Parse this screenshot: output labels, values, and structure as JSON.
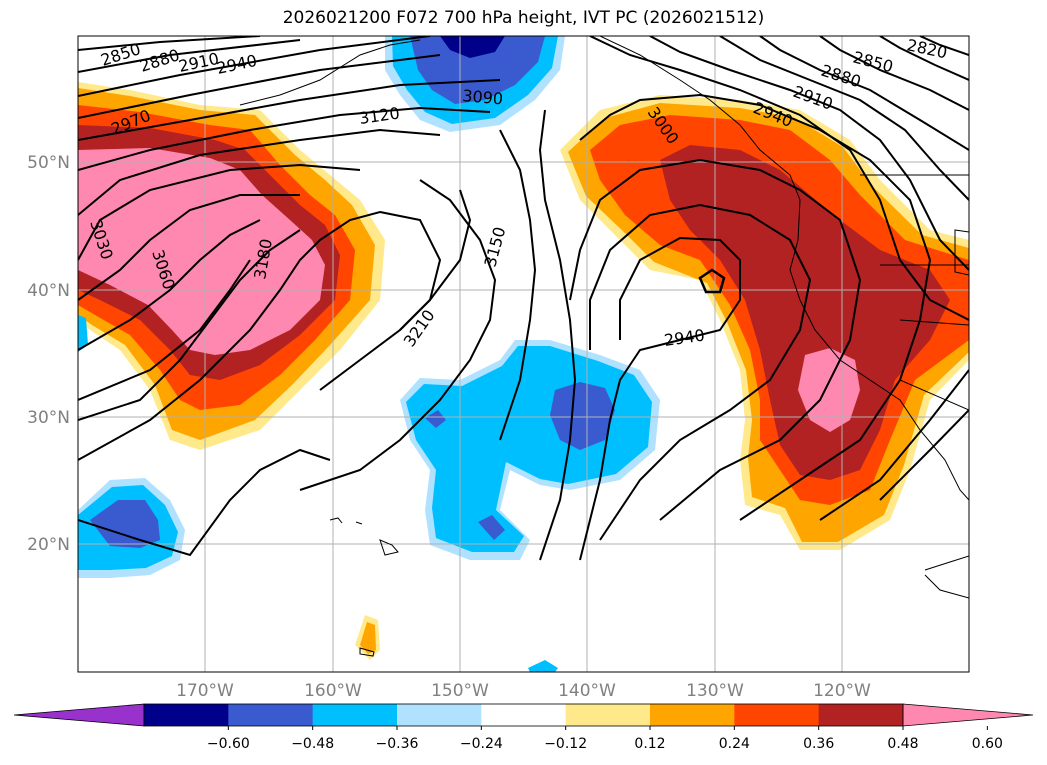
{
  "title": "2026021200 F072 700 hPa height, IVT PC (2026021512)",
  "map": {
    "lon_labels": [
      "170°W",
      "160°W",
      "150°W",
      "140°W",
      "130°W",
      "120°W"
    ],
    "lat_labels": [
      "50°N",
      "40°N",
      "30°N",
      "20°N"
    ],
    "contour_labels": [
      "2850",
      "2880",
      "2910",
      "2940",
      "2970",
      "3030",
      "3060",
      "3180",
      "3120",
      "3090",
      "3150",
      "3210",
      "3000",
      "2940",
      "2850",
      "2880",
      "2910",
      "2940",
      "2820"
    ]
  },
  "colorbar": {
    "ticks": [
      "−0.60",
      "−0.48",
      "−0.36",
      "−0.24",
      "−0.12",
      "0.12",
      "0.24",
      "0.36",
      "0.48",
      "0.60"
    ],
    "colors": [
      "#9932cc",
      "#00008b",
      "#3a5bd0",
      "#00bfff",
      "#b0e2ff",
      "#ffffff",
      "#ffe98a",
      "#ffa500",
      "#ff4500",
      "#b22222",
      "#ff88b0"
    ]
  }
}
